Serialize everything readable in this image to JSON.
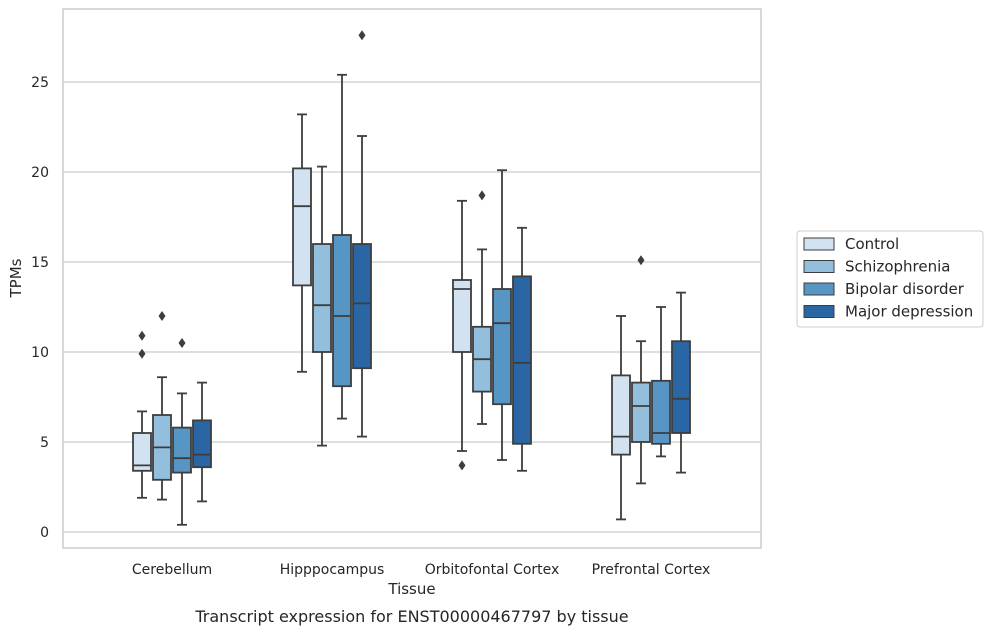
{
  "chart_data": {
    "type": "box",
    "title": "",
    "caption": "Transcript expression for ENST00000467797 by tissue",
    "xlabel": "Tissue",
    "ylabel": "TPMs",
    "ylim": [
      -0.8,
      29
    ],
    "yticks": [
      0,
      5,
      10,
      15,
      20,
      25
    ],
    "grid": "horizontal",
    "legend_position": "right",
    "categories": [
      "Cerebellum",
      "Hipppocampus",
      "Orbitofontal Cortex",
      "Prefrontal Cortex"
    ],
    "series": [
      {
        "name": "Control",
        "color": "#d3e2f0",
        "boxes": [
          {
            "whislo": 1.9,
            "q1": 3.4,
            "med": 3.7,
            "q3": 5.5,
            "whishi": 6.7,
            "fliers": [
              9.9,
              10.9
            ]
          },
          {
            "whislo": 8.9,
            "q1": 13.7,
            "med": 18.1,
            "q3": 20.2,
            "whishi": 23.2,
            "fliers": []
          },
          {
            "whislo": 4.5,
            "q1": 10.0,
            "med": 13.5,
            "q3": 14.0,
            "whishi": 18.4,
            "fliers": [
              3.7
            ]
          },
          {
            "whislo": 0.7,
            "q1": 4.3,
            "med": 5.3,
            "q3": 8.7,
            "whishi": 12.0,
            "fliers": []
          }
        ]
      },
      {
        "name": "Schizophrenia",
        "color": "#94bfdc",
        "boxes": [
          {
            "whislo": 1.8,
            "q1": 2.9,
            "med": 4.7,
            "q3": 6.5,
            "whishi": 8.6,
            "fliers": [
              12.0
            ]
          },
          {
            "whislo": 4.8,
            "q1": 10.0,
            "med": 12.6,
            "q3": 16.0,
            "whishi": 20.3,
            "fliers": []
          },
          {
            "whislo": 6.0,
            "q1": 7.8,
            "med": 9.6,
            "q3": 11.4,
            "whishi": 15.7,
            "fliers": [
              18.7
            ]
          },
          {
            "whislo": 2.7,
            "q1": 5.0,
            "med": 7.0,
            "q3": 8.3,
            "whishi": 10.6,
            "fliers": [
              15.1
            ]
          }
        ]
      },
      {
        "name": "Bipolar disorder",
        "color": "#5795c4",
        "boxes": [
          {
            "whislo": 0.4,
            "q1": 3.3,
            "med": 4.1,
            "q3": 5.8,
            "whishi": 7.7,
            "fliers": [
              10.5
            ]
          },
          {
            "whislo": 6.3,
            "q1": 8.1,
            "med": 12.0,
            "q3": 16.5,
            "whishi": 25.4,
            "fliers": []
          },
          {
            "whislo": 4.0,
            "q1": 7.1,
            "med": 11.6,
            "q3": 13.5,
            "whishi": 20.1,
            "fliers": []
          },
          {
            "whislo": 4.2,
            "q1": 4.9,
            "med": 5.5,
            "q3": 8.4,
            "whishi": 12.5,
            "fliers": []
          }
        ]
      },
      {
        "name": "Major depression",
        "color": "#2a66a4",
        "boxes": [
          {
            "whislo": 1.7,
            "q1": 3.6,
            "med": 4.3,
            "q3": 6.2,
            "whishi": 8.3,
            "fliers": []
          },
          {
            "whislo": 5.3,
            "q1": 9.1,
            "med": 12.7,
            "q3": 16.0,
            "whishi": 22.0,
            "fliers": [
              27.6
            ]
          },
          {
            "whislo": 3.4,
            "q1": 4.9,
            "med": 9.4,
            "q3": 14.2,
            "whishi": 16.9,
            "fliers": []
          },
          {
            "whislo": 3.3,
            "q1": 5.5,
            "med": 7.4,
            "q3": 10.6,
            "whishi": 13.3,
            "fliers": []
          }
        ]
      }
    ]
  }
}
